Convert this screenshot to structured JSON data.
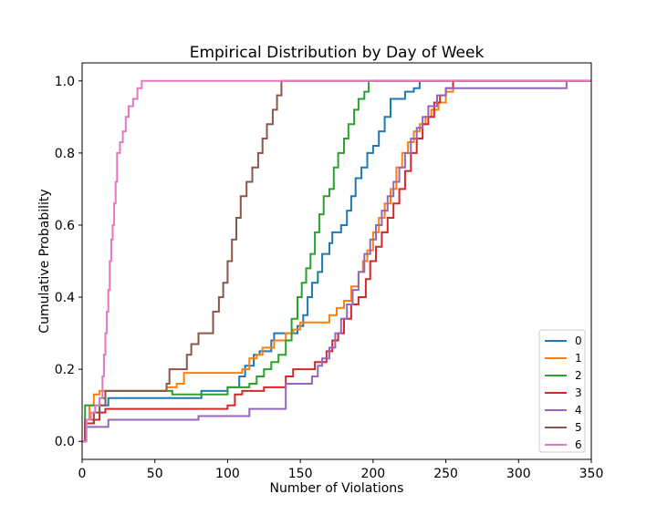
{
  "chart_data": {
    "type": "line",
    "step": true,
    "title": "Empirical Distribution by Day of Week",
    "xlabel": "Number of Violations",
    "ylabel": "Cumulative Probability",
    "xlim": [
      0,
      350
    ],
    "ylim": [
      -0.05,
      1.05
    ],
    "xticks": [
      "0",
      "50",
      "100",
      "150",
      "200",
      "250",
      "300",
      "350"
    ],
    "yticks": [
      "0.0",
      "0.2",
      "0.4",
      "0.6",
      "0.8",
      "1.0"
    ],
    "grid": false,
    "legend": {
      "placement": "bottom-right"
    },
    "series": [
      {
        "name": "0",
        "color": "#1f77b4",
        "points": [
          [
            0,
            0
          ],
          [
            2,
            0.05
          ],
          [
            8,
            0.08
          ],
          [
            12,
            0.1
          ],
          [
            18,
            0.12
          ],
          [
            40,
            0.12
          ],
          [
            80,
            0.12
          ],
          [
            82,
            0.14
          ],
          [
            100,
            0.15
          ],
          [
            108,
            0.18
          ],
          [
            112,
            0.21
          ],
          [
            118,
            0.24
          ],
          [
            122,
            0.25
          ],
          [
            130,
            0.28
          ],
          [
            132,
            0.3
          ],
          [
            145,
            0.3
          ],
          [
            148,
            0.32
          ],
          [
            152,
            0.35
          ],
          [
            155,
            0.4
          ],
          [
            158,
            0.44
          ],
          [
            162,
            0.47
          ],
          [
            165,
            0.52
          ],
          [
            170,
            0.55
          ],
          [
            172,
            0.58
          ],
          [
            178,
            0.6
          ],
          [
            182,
            0.64
          ],
          [
            185,
            0.68
          ],
          [
            188,
            0.73
          ],
          [
            192,
            0.76
          ],
          [
            196,
            0.8
          ],
          [
            200,
            0.82
          ],
          [
            204,
            0.86
          ],
          [
            208,
            0.9
          ],
          [
            212,
            0.95
          ],
          [
            220,
            0.95
          ],
          [
            222,
            0.97
          ],
          [
            228,
            0.98
          ],
          [
            232,
            1.0
          ],
          [
            350,
            1.0
          ]
        ]
      },
      {
        "name": "1",
        "color": "#ff7f0e",
        "points": [
          [
            0,
            0
          ],
          [
            2,
            0.06
          ],
          [
            5,
            0.1
          ],
          [
            8,
            0.13
          ],
          [
            12,
            0.14
          ],
          [
            55,
            0.14
          ],
          [
            58,
            0.15
          ],
          [
            65,
            0.16
          ],
          [
            70,
            0.19
          ],
          [
            100,
            0.19
          ],
          [
            110,
            0.2
          ],
          [
            115,
            0.23
          ],
          [
            120,
            0.24
          ],
          [
            124,
            0.26
          ],
          [
            132,
            0.28
          ],
          [
            140,
            0.3
          ],
          [
            145,
            0.31
          ],
          [
            150,
            0.33
          ],
          [
            165,
            0.33
          ],
          [
            170,
            0.35
          ],
          [
            175,
            0.37
          ],
          [
            180,
            0.39
          ],
          [
            185,
            0.43
          ],
          [
            190,
            0.47
          ],
          [
            193,
            0.5
          ],
          [
            196,
            0.53
          ],
          [
            200,
            0.58
          ],
          [
            204,
            0.62
          ],
          [
            208,
            0.66
          ],
          [
            212,
            0.7
          ],
          [
            216,
            0.76
          ],
          [
            220,
            0.8
          ],
          [
            224,
            0.83
          ],
          [
            228,
            0.86
          ],
          [
            232,
            0.88
          ],
          [
            236,
            0.9
          ],
          [
            240,
            0.92
          ],
          [
            245,
            0.94
          ],
          [
            250,
            0.97
          ],
          [
            255,
            1.0
          ],
          [
            350,
            1.0
          ]
        ]
      },
      {
        "name": "2",
        "color": "#2ca02c",
        "points": [
          [
            0,
            0
          ],
          [
            2,
            0.1
          ],
          [
            8,
            0.1
          ],
          [
            12,
            0.12
          ],
          [
            16,
            0.14
          ],
          [
            60,
            0.14
          ],
          [
            62,
            0.13
          ],
          [
            90,
            0.13
          ],
          [
            100,
            0.15
          ],
          [
            115,
            0.16
          ],
          [
            120,
            0.18
          ],
          [
            125,
            0.2
          ],
          [
            130,
            0.22
          ],
          [
            135,
            0.24
          ],
          [
            140,
            0.28
          ],
          [
            144,
            0.34
          ],
          [
            148,
            0.4
          ],
          [
            151,
            0.44
          ],
          [
            154,
            0.48
          ],
          [
            157,
            0.52
          ],
          [
            160,
            0.58
          ],
          [
            163,
            0.63
          ],
          [
            166,
            0.68
          ],
          [
            170,
            0.7
          ],
          [
            173,
            0.76
          ],
          [
            176,
            0.8
          ],
          [
            180,
            0.84
          ],
          [
            183,
            0.88
          ],
          [
            187,
            0.92
          ],
          [
            190,
            0.95
          ],
          [
            194,
            0.97
          ],
          [
            197,
            1.0
          ],
          [
            350,
            1.0
          ]
        ]
      },
      {
        "name": "3",
        "color": "#d62728",
        "points": [
          [
            0,
            0
          ],
          [
            2,
            0.05
          ],
          [
            8,
            0.06
          ],
          [
            12,
            0.08
          ],
          [
            16,
            0.09
          ],
          [
            60,
            0.09
          ],
          [
            80,
            0.09
          ],
          [
            100,
            0.1
          ],
          [
            105,
            0.13
          ],
          [
            110,
            0.14
          ],
          [
            125,
            0.15
          ],
          [
            140,
            0.18
          ],
          [
            145,
            0.2
          ],
          [
            160,
            0.22
          ],
          [
            168,
            0.25
          ],
          [
            172,
            0.28
          ],
          [
            176,
            0.3
          ],
          [
            180,
            0.34
          ],
          [
            185,
            0.38
          ],
          [
            190,
            0.4
          ],
          [
            195,
            0.45
          ],
          [
            198,
            0.5
          ],
          [
            202,
            0.54
          ],
          [
            206,
            0.58
          ],
          [
            210,
            0.62
          ],
          [
            214,
            0.66
          ],
          [
            218,
            0.7
          ],
          [
            222,
            0.75
          ],
          [
            226,
            0.8
          ],
          [
            230,
            0.84
          ],
          [
            234,
            0.88
          ],
          [
            238,
            0.9
          ],
          [
            242,
            0.94
          ],
          [
            246,
            0.96
          ],
          [
            250,
            0.98
          ],
          [
            255,
            1.0
          ],
          [
            350,
            1.0
          ]
        ]
      },
      {
        "name": "4",
        "color": "#9467bd",
        "points": [
          [
            0,
            0
          ],
          [
            2,
            0.04
          ],
          [
            14,
            0.04
          ],
          [
            18,
            0.06
          ],
          [
            50,
            0.06
          ],
          [
            80,
            0.07
          ],
          [
            110,
            0.07
          ],
          [
            115,
            0.09
          ],
          [
            135,
            0.09
          ],
          [
            140,
            0.16
          ],
          [
            155,
            0.16
          ],
          [
            158,
            0.18
          ],
          [
            162,
            0.21
          ],
          [
            165,
            0.23
          ],
          [
            170,
            0.26
          ],
          [
            174,
            0.3
          ],
          [
            178,
            0.34
          ],
          [
            182,
            0.38
          ],
          [
            186,
            0.42
          ],
          [
            190,
            0.47
          ],
          [
            194,
            0.52
          ],
          [
            198,
            0.56
          ],
          [
            202,
            0.6
          ],
          [
            206,
            0.64
          ],
          [
            210,
            0.68
          ],
          [
            214,
            0.72
          ],
          [
            218,
            0.76
          ],
          [
            222,
            0.8
          ],
          [
            226,
            0.84
          ],
          [
            230,
            0.87
          ],
          [
            234,
            0.9
          ],
          [
            238,
            0.93
          ],
          [
            244,
            0.96
          ],
          [
            250,
            0.98
          ],
          [
            330,
            0.98
          ],
          [
            333,
            1.0
          ],
          [
            350,
            1.0
          ]
        ]
      },
      {
        "name": "5",
        "color": "#8c564b",
        "points": [
          [
            0,
            0
          ],
          [
            2,
            0.06
          ],
          [
            8,
            0.08
          ],
          [
            12,
            0.1
          ],
          [
            16,
            0.14
          ],
          [
            55,
            0.14
          ],
          [
            58,
            0.16
          ],
          [
            60,
            0.2
          ],
          [
            68,
            0.2
          ],
          [
            72,
            0.24
          ],
          [
            75,
            0.27
          ],
          [
            80,
            0.3
          ],
          [
            86,
            0.3
          ],
          [
            90,
            0.36
          ],
          [
            94,
            0.4
          ],
          [
            97,
            0.44
          ],
          [
            100,
            0.5
          ],
          [
            103,
            0.56
          ],
          [
            106,
            0.62
          ],
          [
            109,
            0.68
          ],
          [
            113,
            0.72
          ],
          [
            117,
            0.76
          ],
          [
            121,
            0.8
          ],
          [
            124,
            0.84
          ],
          [
            127,
            0.88
          ],
          [
            131,
            0.92
          ],
          [
            134,
            0.96
          ],
          [
            137,
            1.0
          ],
          [
            350,
            1.0
          ]
        ]
      },
      {
        "name": "6",
        "color": "#e377c2",
        "points": [
          [
            0,
            0
          ],
          [
            3,
            0.06
          ],
          [
            6,
            0.08
          ],
          [
            9,
            0.1
          ],
          [
            12,
            0.12
          ],
          [
            14,
            0.18
          ],
          [
            15,
            0.24
          ],
          [
            16,
            0.3
          ],
          [
            17,
            0.36
          ],
          [
            18,
            0.42
          ],
          [
            19,
            0.5
          ],
          [
            20,
            0.56
          ],
          [
            21,
            0.6
          ],
          [
            22,
            0.66
          ],
          [
            23,
            0.72
          ],
          [
            24,
            0.8
          ],
          [
            26,
            0.83
          ],
          [
            28,
            0.86
          ],
          [
            30,
            0.9
          ],
          [
            32,
            0.93
          ],
          [
            35,
            0.95
          ],
          [
            38,
            0.98
          ],
          [
            41,
            1.0
          ],
          [
            350,
            1.0
          ]
        ]
      }
    ]
  }
}
